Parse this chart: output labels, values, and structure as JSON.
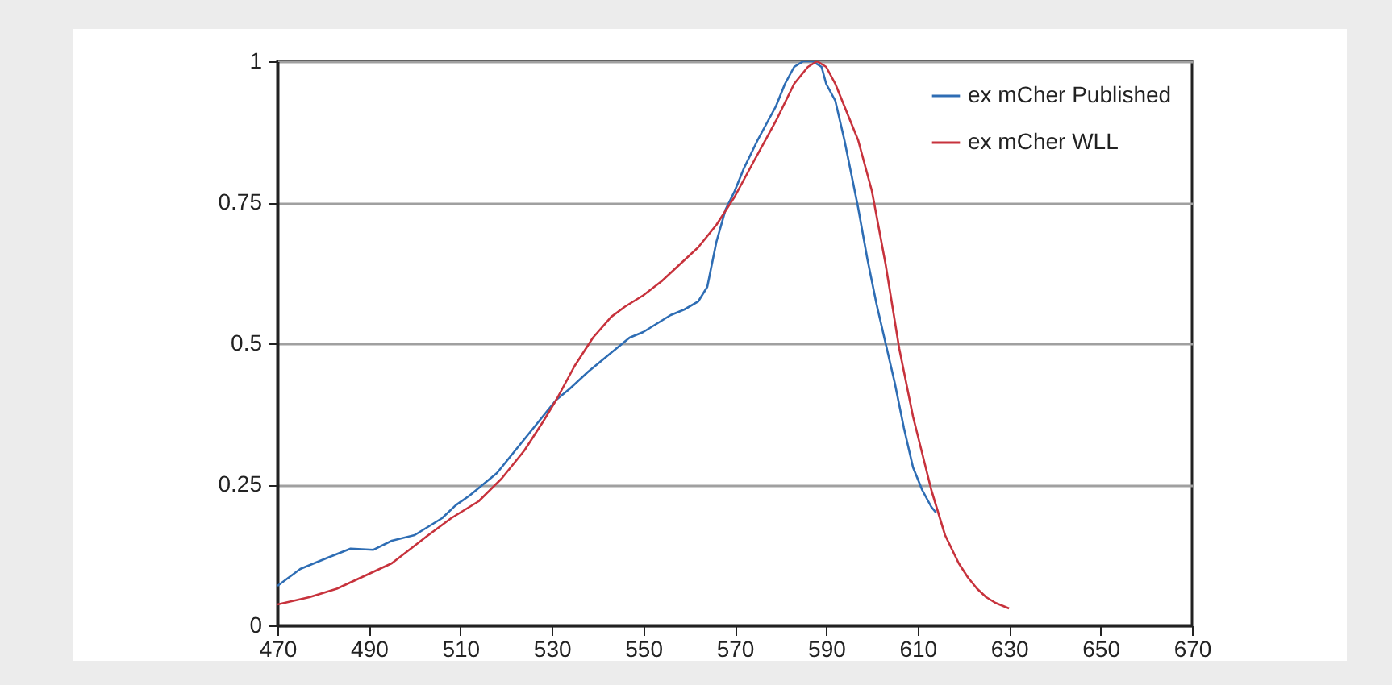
{
  "chart_data": {
    "type": "line",
    "xlim": [
      470,
      670
    ],
    "xticks": [
      470,
      490,
      510,
      530,
      550,
      570,
      590,
      610,
      630,
      650,
      670
    ],
    "ylim": [
      0,
      1
    ],
    "yticks": [
      0,
      0.25,
      0.5,
      0.75,
      1
    ],
    "grid": "y",
    "legend": "top right",
    "line_style": "solid",
    "series": [
      {
        "name": "ex mCher Published",
        "color": "#2e6db4",
        "x": [
          470,
          475,
          481,
          486,
          491,
          495,
          500,
          503,
          506,
          509,
          512,
          515,
          518,
          521,
          524,
          527,
          531,
          534,
          538,
          541,
          544,
          547,
          550,
          553,
          556,
          559,
          562,
          564,
          566,
          568,
          570,
          572,
          575,
          579,
          581,
          583,
          585,
          587,
          589,
          590,
          592,
          594,
          597,
          599,
          601,
          603,
          605,
          607,
          609,
          611,
          613,
          614
        ],
        "values": [
          0.07,
          0.1,
          0.12,
          0.136,
          0.134,
          0.15,
          0.16,
          0.175,
          0.19,
          0.213,
          0.23,
          0.25,
          0.27,
          0.3,
          0.33,
          0.36,
          0.4,
          0.42,
          0.45,
          0.47,
          0.49,
          0.51,
          0.52,
          0.535,
          0.55,
          0.56,
          0.574,
          0.6,
          0.68,
          0.737,
          0.77,
          0.81,
          0.86,
          0.92,
          0.96,
          0.99,
          1.0,
          1.0,
          0.99,
          0.96,
          0.93,
          0.86,
          0.74,
          0.65,
          0.57,
          0.5,
          0.43,
          0.35,
          0.28,
          0.24,
          0.21,
          0.2
        ]
      },
      {
        "name": "ex mCher WLL",
        "color": "#c7323c",
        "x": [
          470,
          477,
          483,
          487,
          491,
          495,
          499,
          503,
          508,
          514,
          519,
          524,
          528,
          531,
          535,
          539,
          543,
          546,
          550,
          554,
          558,
          562,
          566,
          570,
          574,
          579,
          583,
          586,
          588,
          590,
          592,
          594,
          597,
          600,
          603,
          606,
          609,
          613,
          616,
          619,
          621,
          623,
          625,
          627,
          630
        ],
        "values": [
          0.037,
          0.05,
          0.065,
          0.08,
          0.095,
          0.11,
          0.135,
          0.16,
          0.19,
          0.22,
          0.26,
          0.31,
          0.36,
          0.4,
          0.46,
          0.51,
          0.547,
          0.565,
          0.585,
          0.61,
          0.64,
          0.67,
          0.71,
          0.76,
          0.82,
          0.894,
          0.96,
          0.99,
          1.0,
          0.99,
          0.96,
          0.92,
          0.86,
          0.77,
          0.64,
          0.49,
          0.37,
          0.24,
          0.16,
          0.11,
          0.085,
          0.065,
          0.05,
          0.04,
          0.03
        ]
      }
    ]
  }
}
